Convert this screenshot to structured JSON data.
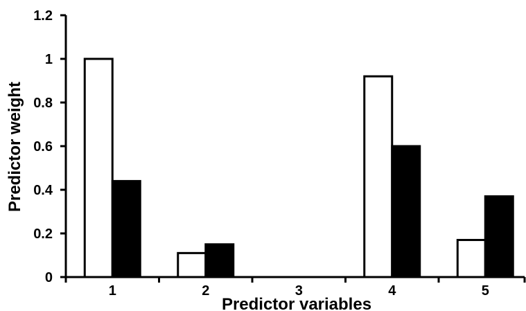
{
  "chart_data": {
    "type": "bar",
    "xlabel": "Predictor variables",
    "ylabel": "Predictor weight",
    "categories": [
      "1",
      "2",
      "3",
      "4",
      "5"
    ],
    "ylim": [
      0,
      1.2
    ],
    "yticks": [
      "0",
      "0.2",
      "0.4",
      "0.6",
      "0.8",
      "1",
      "1.2"
    ],
    "grid": false,
    "legend": "none",
    "series": [
      {
        "fill": "#ffffff",
        "stroke": "#000000",
        "values": [
          1.0,
          0.11,
          0,
          0.92,
          0.17
        ]
      },
      {
        "fill": "#000000",
        "stroke": "#000000",
        "values": [
          0.44,
          0.15,
          0,
          0.6,
          0.37
        ]
      }
    ]
  }
}
